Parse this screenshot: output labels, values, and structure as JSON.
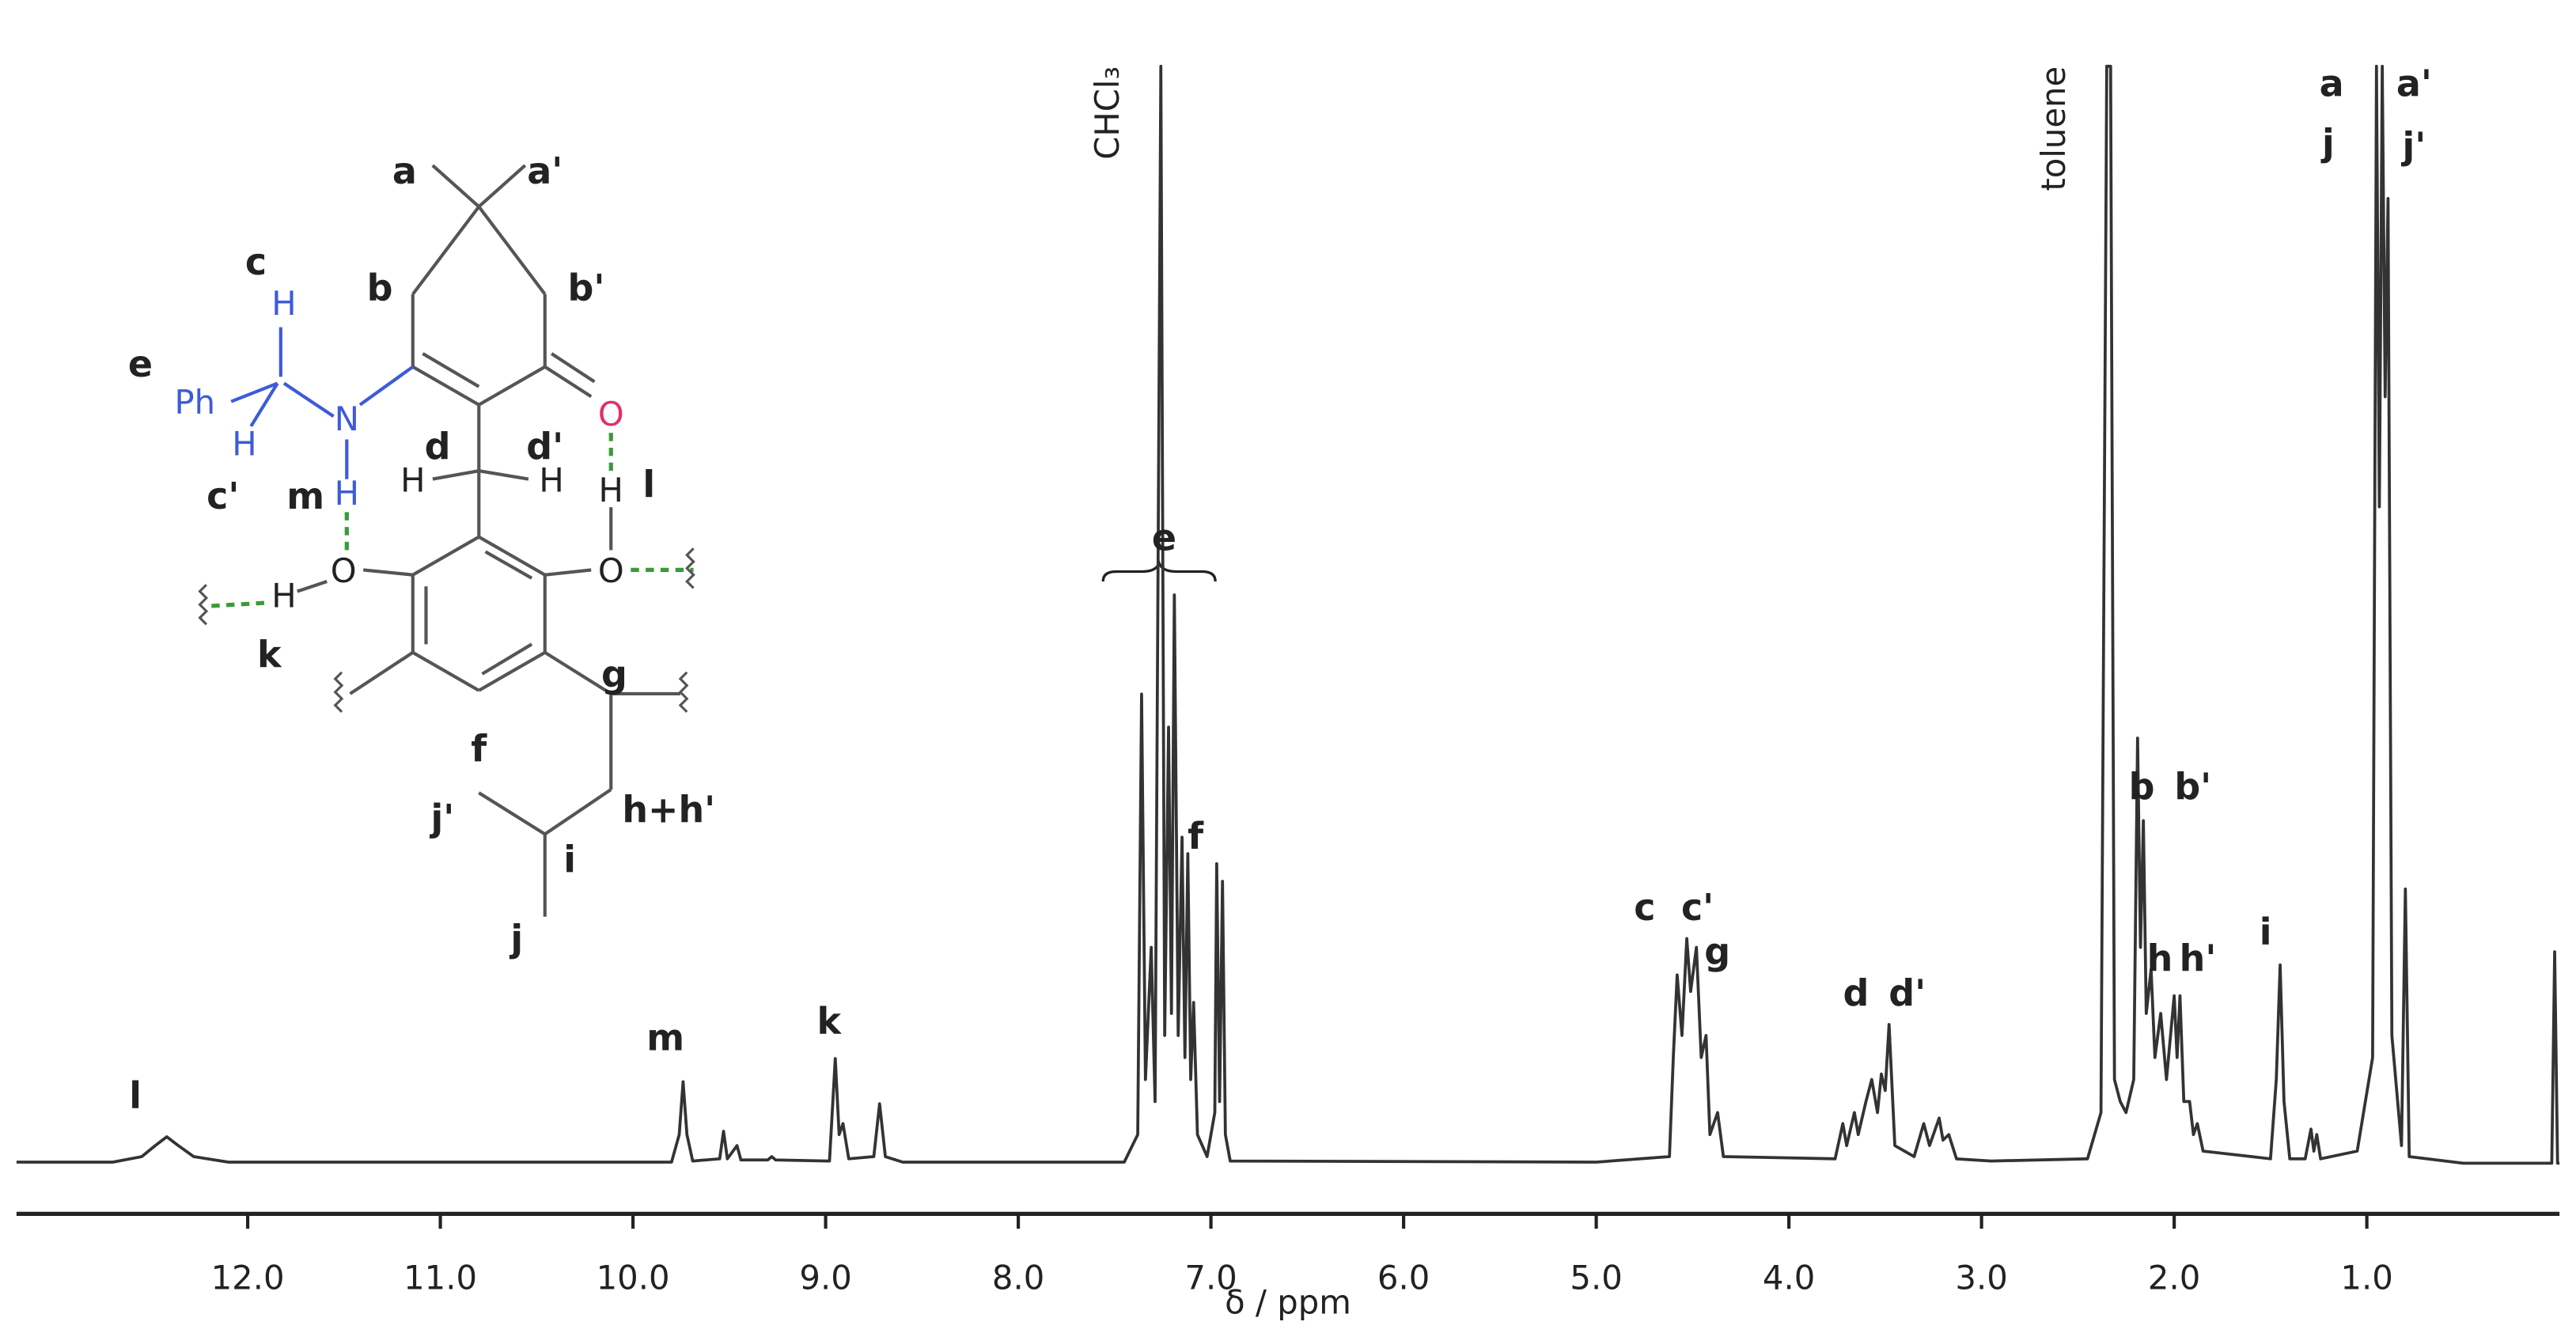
{
  "chart_data": {
    "type": "line",
    "color": "#333333",
    "x_label": "δ / ppm",
    "xlim": [
      13.2,
      0
    ],
    "ylim": [
      0,
      100
    ],
    "xticks": [
      {
        "value": 12,
        "label": "12.0"
      },
      {
        "value": 11,
        "label": "11.0"
      },
      {
        "value": 10,
        "label": "10.0"
      },
      {
        "value": 9,
        "label": "9.0"
      },
      {
        "value": 8,
        "label": "8.0"
      },
      {
        "value": 7,
        "label": "7.0"
      },
      {
        "value": 6,
        "label": "6.0"
      },
      {
        "value": 5,
        "label": "5.0"
      },
      {
        "value": 4,
        "label": "4.0"
      },
      {
        "value": 3,
        "label": "3.0"
      },
      {
        "value": 2,
        "label": "2.0"
      },
      {
        "value": 1,
        "label": "1.0"
      }
    ],
    "x": [
      13.2,
      12.7,
      12.55,
      12.48,
      12.42,
      12.36,
      12.28,
      12.1,
      9.8,
      9.76,
      9.74,
      9.72,
      9.69,
      9.55,
      9.53,
      9.51,
      9.46,
      9.44,
      9.3,
      9.28,
      9.26,
      8.98,
      8.95,
      8.93,
      8.91,
      8.88,
      8.75,
      8.72,
      8.69,
      8.6,
      7.45,
      7.38,
      7.36,
      7.34,
      7.31,
      7.29,
      7.26,
      7.24,
      7.22,
      7.205,
      7.19,
      7.17,
      7.15,
      7.135,
      7.12,
      7.105,
      7.09,
      7.07,
      7.02,
      6.98,
      6.97,
      6.955,
      6.94,
      6.925,
      6.9,
      5.0,
      4.62,
      4.6,
      4.58,
      4.555,
      4.53,
      4.51,
      4.48,
      4.455,
      4.43,
      4.41,
      4.37,
      4.34,
      3.76,
      3.72,
      3.7,
      3.66,
      3.64,
      3.6,
      3.57,
      3.54,
      3.52,
      3.5,
      3.48,
      3.45,
      3.35,
      3.3,
      3.27,
      3.22,
      3.2,
      3.17,
      3.13,
      2.95,
      2.45,
      2.38,
      2.35,
      2.33,
      2.31,
      2.28,
      2.25,
      2.21,
      2.19,
      2.175,
      2.16,
      2.145,
      2.12,
      2.1,
      2.07,
      2.04,
      2.0,
      1.985,
      1.97,
      1.95,
      1.92,
      1.9,
      1.88,
      1.85,
      1.6,
      1.5,
      1.47,
      1.45,
      1.43,
      1.4,
      1.32,
      1.29,
      1.275,
      1.26,
      1.24,
      1.05,
      0.97,
      0.95,
      0.935,
      0.92,
      0.905,
      0.89,
      0.87,
      0.82,
      0.8,
      0.78,
      0.5,
      0.04,
      0.025,
      0.01,
      0
    ],
    "values": [
      0.5,
      0.5,
      1.0,
      2.0,
      2.8,
      2.0,
      1.0,
      0.5,
      0.5,
      3,
      7.8,
      3,
      0.6,
      0.8,
      3.3,
      0.8,
      2.0,
      0.7,
      0.7,
      1.0,
      0.7,
      0.6,
      9.9,
      3,
      4,
      0.8,
      1.0,
      5.8,
      1.0,
      0.5,
      0.5,
      3,
      43,
      8,
      20,
      6,
      100,
      12,
      40,
      14,
      52,
      12,
      30,
      10,
      28.5,
      8,
      15,
      3,
      1,
      5,
      27.6,
      6,
      26,
      3,
      0.6,
      0.5,
      1,
      10,
      17.5,
      12,
      20.8,
      16,
      20,
      10,
      12,
      3,
      5,
      1,
      0.8,
      4,
      2,
      5,
      3,
      6,
      8,
      5,
      8.5,
      7,
      13,
      2,
      1,
      4,
      2,
      4.5,
      2.5,
      3,
      0.8,
      0.6,
      0.8,
      5,
      100,
      100,
      8,
      6,
      5,
      8,
      39,
      20,
      31.5,
      14,
      18,
      10,
      14,
      8,
      15.6,
      10,
      15.6,
      6,
      6,
      3,
      4,
      1.5,
      1,
      0.8,
      8,
      18.4,
      6,
      0.8,
      0.8,
      3.5,
      1.5,
      3,
      0.8,
      1.5,
      10,
      100,
      60,
      100,
      70,
      88,
      12,
      2,
      25.3,
      1,
      0.4,
      0.4,
      19.6,
      0.4,
      0.4
    ],
    "peak_labels": [
      "l",
      "m",
      "k",
      "e",
      "f",
      "c",
      "c'",
      "g",
      "d",
      "d'",
      "b",
      "b'",
      "h",
      "h'",
      "i",
      "a",
      "j",
      "a'",
      "j'"
    ],
    "solvent_labels": [
      "CHCl₃",
      "toluene"
    ],
    "structure_labels": [
      "a",
      "a'",
      "b",
      "b'",
      "c",
      "c'",
      "d",
      "d'",
      "e",
      "f",
      "g",
      "h+h'",
      "i",
      "j",
      "j'",
      "k",
      "l",
      "m"
    ],
    "structure_atoms": [
      "Ph",
      "H",
      "H",
      "N",
      "H",
      "O",
      "H",
      "H",
      "H",
      "O",
      "H",
      "O"
    ]
  }
}
